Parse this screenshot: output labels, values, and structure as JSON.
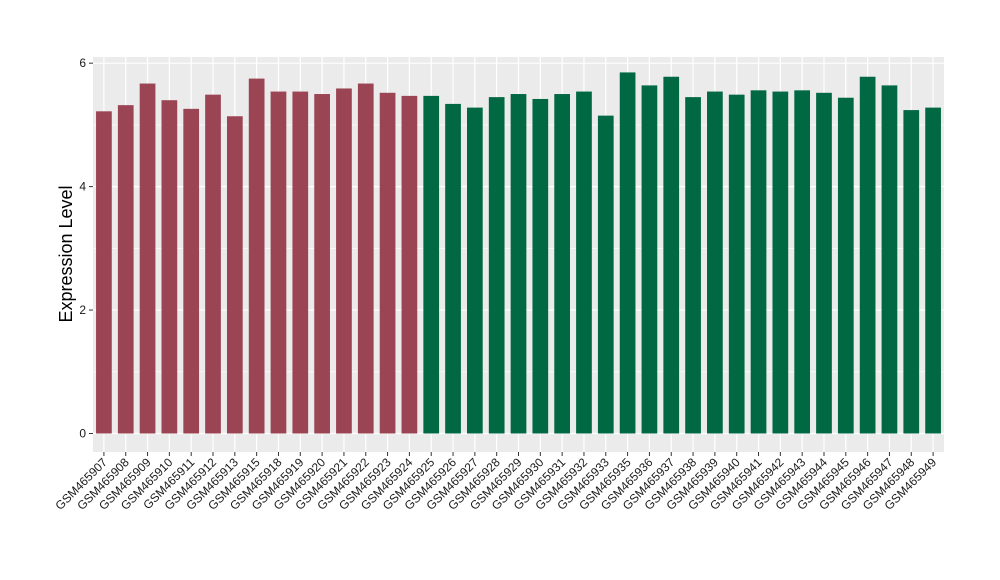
{
  "chart_data": {
    "type": "bar",
    "title": "",
    "xlabel": "",
    "ylabel": "Expression Level",
    "ylim": [
      -0.3,
      6.1
    ],
    "yticks": [
      0,
      2,
      4,
      6
    ],
    "grid": true,
    "legend": "none",
    "colors": {
      "group1": "#9b4453",
      "group2": "#006944",
      "panel": "#ebebeb",
      "grid": "#ffffff"
    },
    "categories": [
      "GSM465907",
      "GSM465908",
      "GSM465909",
      "GSM465910",
      "GSM465911",
      "GSM465912",
      "GSM465913",
      "GSM465915",
      "GSM465918",
      "GSM465919",
      "GSM465920",
      "GSM465921",
      "GSM465922",
      "GSM465923",
      "GSM465924",
      "GSM465925",
      "GSM465926",
      "GSM465927",
      "GSM465928",
      "GSM465929",
      "GSM465930",
      "GSM465931",
      "GSM465932",
      "GSM465933",
      "GSM465935",
      "GSM465936",
      "GSM465937",
      "GSM465938",
      "GSM465939",
      "GSM465940",
      "GSM465941",
      "GSM465942",
      "GSM465943",
      "GSM465944",
      "GSM465945",
      "GSM465946",
      "GSM465947",
      "GSM465948",
      "GSM465949"
    ],
    "values": [
      5.22,
      5.32,
      5.67,
      5.4,
      5.26,
      5.49,
      5.14,
      5.75,
      5.54,
      5.54,
      5.5,
      5.59,
      5.67,
      5.52,
      5.47,
      5.47,
      5.34,
      5.28,
      5.45,
      5.5,
      5.42,
      5.5,
      5.54,
      5.15,
      5.85,
      5.64,
      5.78,
      5.45,
      5.54,
      5.49,
      5.56,
      5.54,
      5.56,
      5.52,
      5.44,
      5.78,
      5.64,
      5.24,
      5.28
    ],
    "groups": [
      1,
      1,
      1,
      1,
      1,
      1,
      1,
      1,
      1,
      1,
      1,
      1,
      1,
      1,
      1,
      2,
      2,
      2,
      2,
      2,
      2,
      2,
      2,
      2,
      2,
      2,
      2,
      2,
      2,
      2,
      2,
      2,
      2,
      2,
      2,
      2,
      2,
      2,
      2
    ]
  }
}
